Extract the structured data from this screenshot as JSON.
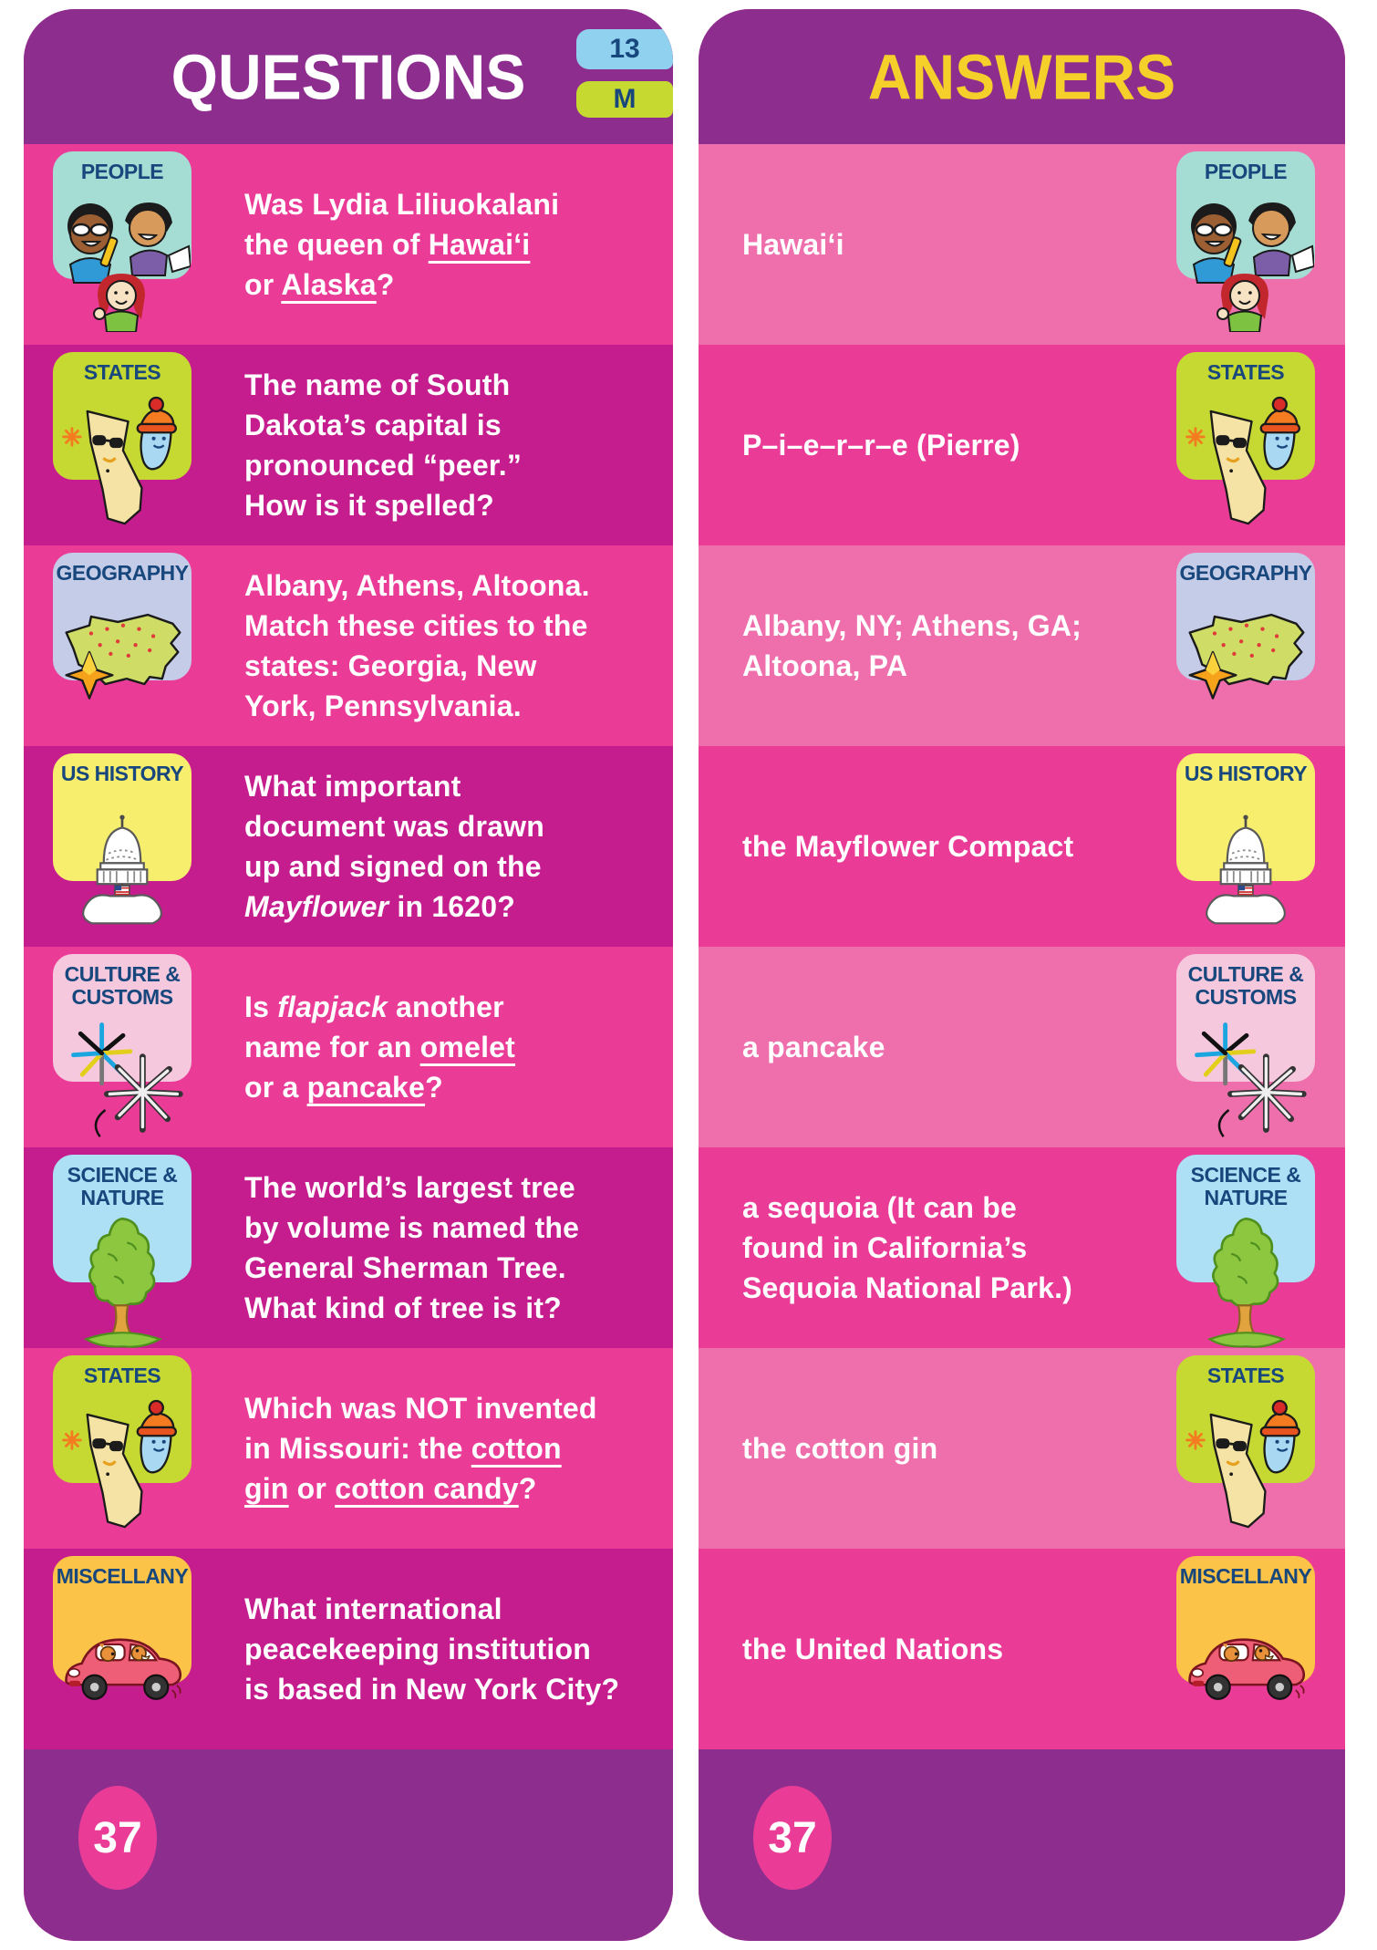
{
  "page_number": "37",
  "level_badge": {
    "number": "13",
    "letter": "M"
  },
  "colors": {
    "header_purple": "#8d2e8f",
    "bright_pink": "#ea3c97",
    "dark_magenta": "#c51d8e",
    "light_pink": "#ee6fac",
    "answers_title_yellow": "#f5d02b",
    "badge_text_blue": "#17477c",
    "chip_blue": "#8fd1ee",
    "chip_green": "#c6d930"
  },
  "questions_panel": {
    "title": "QUESTIONS",
    "row_colors": [
      "#ea3c97",
      "#c51d8e"
    ],
    "rows": [
      {
        "category": "PEOPLE",
        "icon": "people-kids-icon",
        "badge_color": "#a5ddd4",
        "html": "Was Lydia Liliuokalani<br>the queen of <u>Hawai‘i</u><br>or <u>Alaska</u>?"
      },
      {
        "category": "STATES",
        "icon": "california-maine-icon",
        "badge_color": "#c6d932",
        "html": "The name of South<br>Dakota’s capital is<br>pronounced “peer.”<br>How is it spelled?"
      },
      {
        "category": "GEOGRAPHY",
        "icon": "us-map-compass-icon",
        "badge_color": "#c5cce8",
        "html": "Albany, Athens, Altoona.<br>Match these cities to the<br>states: Georgia, New<br>York, Pennsylvania."
      },
      {
        "category": "US HISTORY",
        "icon": "capitol-icon",
        "badge_color": "#f7ee6e",
        "html": "What important<br>document was drawn<br>up and signed on the<br><i>Mayflower</i> in 1620?"
      },
      {
        "category": "CULTURE & CUSTOMS",
        "icon": "fireworks-icon",
        "badge_color": "#f6c8de",
        "html": "Is <i>flapjack</i> another<br>name for an <u>omelet</u><br>or a <u>pancake</u>?"
      },
      {
        "category": "SCIENCE & NATURE",
        "icon": "tree-icon",
        "badge_color": "#ade0f5",
        "html": "The world’s largest tree<br>by volume is named the<br>General Sherman Tree.<br>What kind of tree is it?"
      },
      {
        "category": "STATES",
        "icon": "california-maine-icon",
        "badge_color": "#c6d932",
        "html": "Which was NOT invented<br>in Missouri: the <u>cotton</u><br><u>gin</u> or <u>cotton candy</u>?"
      },
      {
        "category": "MISCELLANY",
        "icon": "car-dogs-icon",
        "badge_color": "#fbc347",
        "html": "What international<br>peacekeeping institution<br>is based in New York City?"
      }
    ]
  },
  "answers_panel": {
    "title": "ANSWERS",
    "row_colors": [
      "#ee6fac",
      "#ea3c97"
    ],
    "rows": [
      {
        "category": "PEOPLE",
        "icon": "people-kids-icon",
        "badge_color": "#a5ddd4",
        "html": "Hawai‘i"
      },
      {
        "category": "STATES",
        "icon": "california-maine-icon",
        "badge_color": "#c6d932",
        "html": "P–i–e–r–r–e (Pierre)"
      },
      {
        "category": "GEOGRAPHY",
        "icon": "us-map-compass-icon",
        "badge_color": "#c5cce8",
        "html": "Albany, NY; Athens, GA;<br>Altoona, PA"
      },
      {
        "category": "US HISTORY",
        "icon": "capitol-icon",
        "badge_color": "#f7ee6e",
        "html": "the Mayflower Compact"
      },
      {
        "category": "CULTURE & CUSTOMS",
        "icon": "fireworks-icon",
        "badge_color": "#f6c8de",
        "html": "a pancake"
      },
      {
        "category": "SCIENCE & NATURE",
        "icon": "tree-icon",
        "badge_color": "#ade0f5",
        "html": "a sequoia (It can be<br>found in California’s<br>Sequoia National Park.)"
      },
      {
        "category": "STATES",
        "icon": "california-maine-icon",
        "badge_color": "#c6d932",
        "html": "the cotton gin"
      },
      {
        "category": "MISCELLANY",
        "icon": "car-dogs-icon",
        "badge_color": "#fbc347",
        "html": "the United Nations"
      }
    ]
  }
}
